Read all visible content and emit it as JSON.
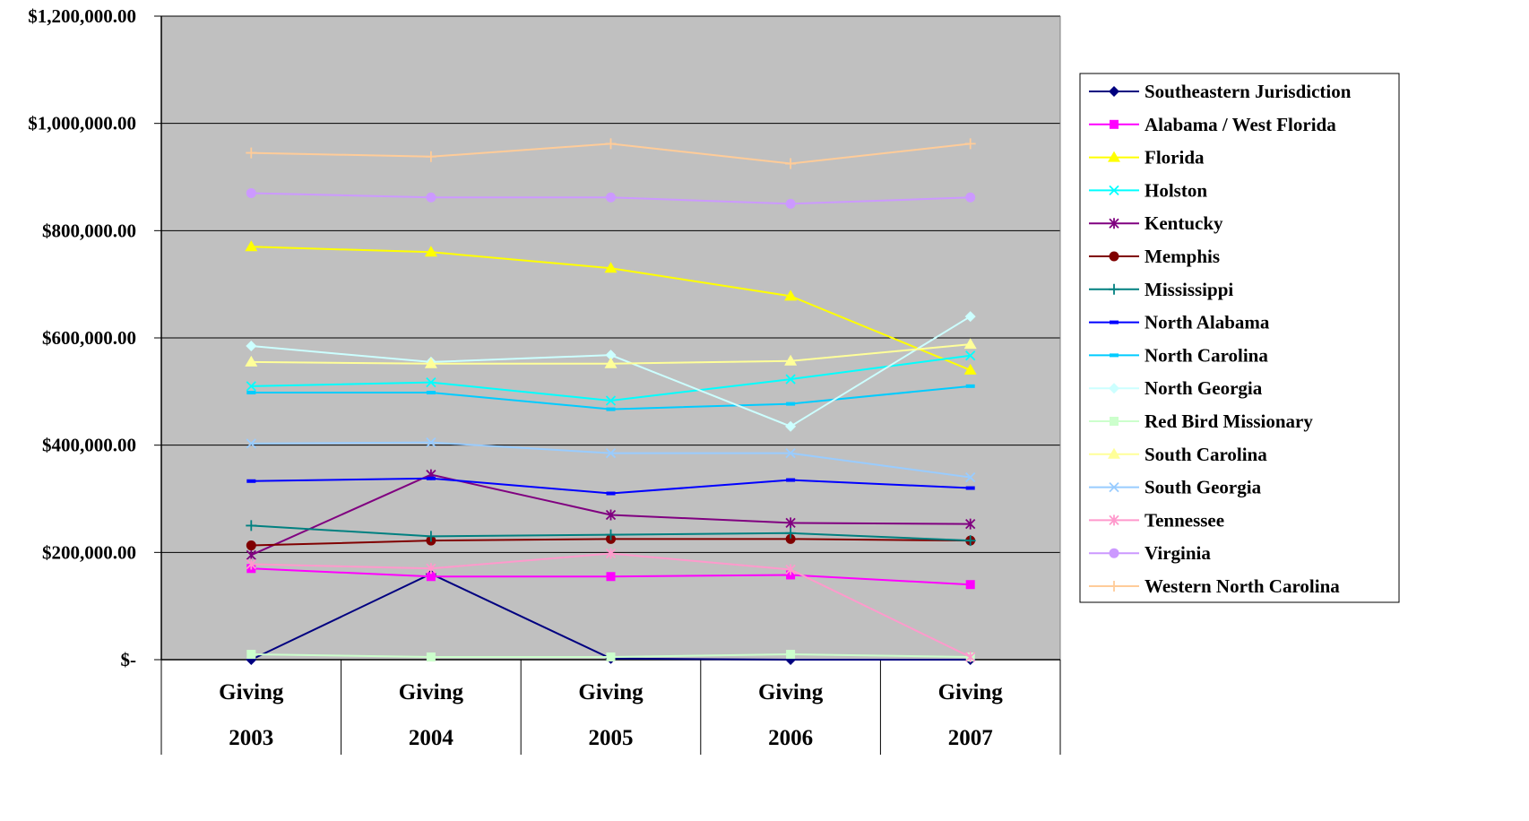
{
  "chart_data": {
    "type": "line",
    "title": "",
    "xlabel": "",
    "ylabel": "",
    "ylim": [
      0,
      1200000
    ],
    "y_tick_values": [
      0,
      200000,
      400000,
      600000,
      800000,
      1000000,
      1200000
    ],
    "y_tick_labels": [
      "$-",
      "$200,000.00",
      "$400,000.00",
      "$600,000.00",
      "$800,000.00",
      "$1,000,000.00",
      "$1,200,000.00"
    ],
    "categories": [
      {
        "line1": "Giving",
        "line2": "2003"
      },
      {
        "line1": "Giving",
        "line2": "2004"
      },
      {
        "line1": "Giving",
        "line2": "2005"
      },
      {
        "line1": "Giving",
        "line2": "2006"
      },
      {
        "line1": "Giving",
        "line2": "2007"
      }
    ],
    "grid": true,
    "plot_background": "#c0c0c0",
    "legend_position": "right",
    "series": [
      {
        "name": "Southeastern Jurisdiction",
        "color": "#000080",
        "marker": "diamond",
        "values": [
          0,
          160000,
          2000,
          0,
          0
        ]
      },
      {
        "name": "Alabama / West Florida",
        "color": "#ff00ff",
        "marker": "square",
        "values": [
          170000,
          155000,
          155000,
          158000,
          140000
        ]
      },
      {
        "name": "Florida",
        "color": "#ffff00",
        "marker": "triangle",
        "values": [
          770000,
          760000,
          730000,
          678000,
          540000
        ]
      },
      {
        "name": "Holston",
        "color": "#00ffff",
        "marker": "x",
        "values": [
          510000,
          517000,
          483000,
          523000,
          567000
        ]
      },
      {
        "name": "Kentucky",
        "color": "#800080",
        "marker": "star",
        "values": [
          195000,
          345000,
          270000,
          255000,
          253000
        ]
      },
      {
        "name": "Memphis",
        "color": "#800000",
        "marker": "circle",
        "values": [
          213000,
          222000,
          225000,
          225000,
          222000
        ]
      },
      {
        "name": "Mississippi",
        "color": "#008080",
        "marker": "plus",
        "values": [
          250000,
          230000,
          233000,
          236000,
          222000
        ]
      },
      {
        "name": "North Alabama",
        "color": "#0000ff",
        "marker": "dash",
        "values": [
          333000,
          338000,
          310000,
          335000,
          320000
        ]
      },
      {
        "name": "North Carolina",
        "color": "#00ccff",
        "marker": "dash",
        "values": [
          498000,
          498000,
          467000,
          477000,
          510000
        ]
      },
      {
        "name": "North Georgia",
        "color": "#ccffff",
        "marker": "diamond",
        "values": [
          585000,
          555000,
          568000,
          435000,
          640000
        ]
      },
      {
        "name": "Red Bird Missionary",
        "color": "#ccffcc",
        "marker": "square",
        "values": [
          10000,
          5000,
          5000,
          10000,
          5000
        ]
      },
      {
        "name": "South Carolina",
        "color": "#ffff99",
        "marker": "triangle",
        "values": [
          555000,
          552000,
          552000,
          557000,
          588000
        ]
      },
      {
        "name": "South Georgia",
        "color": "#99ccff",
        "marker": "x",
        "values": [
          403000,
          405000,
          385000,
          385000,
          340000
        ]
      },
      {
        "name": "Tennessee",
        "color": "#ff99cc",
        "marker": "star",
        "values": [
          178000,
          170000,
          198000,
          168000,
          5000
        ]
      },
      {
        "name": "Virginia",
        "color": "#cc99ff",
        "marker": "circle",
        "values": [
          870000,
          862000,
          862000,
          850000,
          862000
        ]
      },
      {
        "name": "Western North Carolina",
        "color": "#ffcc99",
        "marker": "plus",
        "values": [
          945000,
          938000,
          962000,
          925000,
          962000
        ]
      }
    ]
  }
}
